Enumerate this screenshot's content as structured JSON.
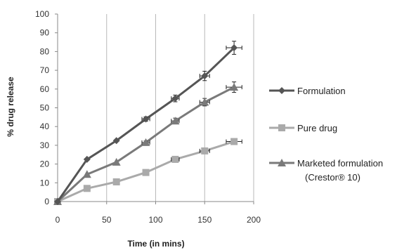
{
  "chart_data": {
    "type": "line",
    "title": "",
    "xlabel": "Time (in mins)",
    "ylabel": "% drug release",
    "xlim": [
      0,
      200
    ],
    "ylim": [
      0,
      100
    ],
    "x_ticks": [
      "0",
      "50",
      "100",
      "150",
      "200"
    ],
    "y_ticks": [
      "0",
      "10",
      "20",
      "30",
      "40",
      "50",
      "60",
      "70",
      "80",
      "90",
      "100"
    ],
    "grid": "vertical gridlines",
    "legend_position": "right",
    "series": [
      {
        "name": "Formulation",
        "marker": "diamond",
        "color": "#555555",
        "x": [
          0,
          30,
          60,
          90,
          120,
          150,
          180
        ],
        "y": [
          0,
          22.5,
          32.5,
          44,
          55,
          67,
          82
        ],
        "y_error": [
          0,
          0.5,
          0.5,
          1.2,
          1.8,
          2.5,
          3.5
        ],
        "x_error": [
          0,
          0,
          0,
          4,
          4,
          5,
          8
        ]
      },
      {
        "name": "Pure drug",
        "marker": "square",
        "color": "#aaaaaa",
        "x": [
          0,
          30,
          60,
          90,
          120,
          150,
          180
        ],
        "y": [
          0,
          7,
          10.5,
          15.5,
          22.5,
          27,
          32
        ],
        "y_error": [
          0,
          0,
          0,
          0,
          0.5,
          0.5,
          1.0
        ],
        "x_error": [
          0,
          0,
          0,
          0,
          4,
          5,
          8
        ]
      },
      {
        "name": "Marketed formulation",
        "name_line2": "(Crestor® 10)",
        "marker": "triangle",
        "color": "#7a7a7a",
        "x": [
          0,
          30,
          60,
          90,
          120,
          150,
          180
        ],
        "y": [
          0,
          14.5,
          21,
          31.5,
          43,
          53,
          61
        ],
        "y_error": [
          0,
          0,
          0,
          0.8,
          1.5,
          2.0,
          2.8
        ],
        "x_error": [
          0,
          0,
          0,
          4,
          4,
          5,
          8
        ]
      }
    ]
  }
}
